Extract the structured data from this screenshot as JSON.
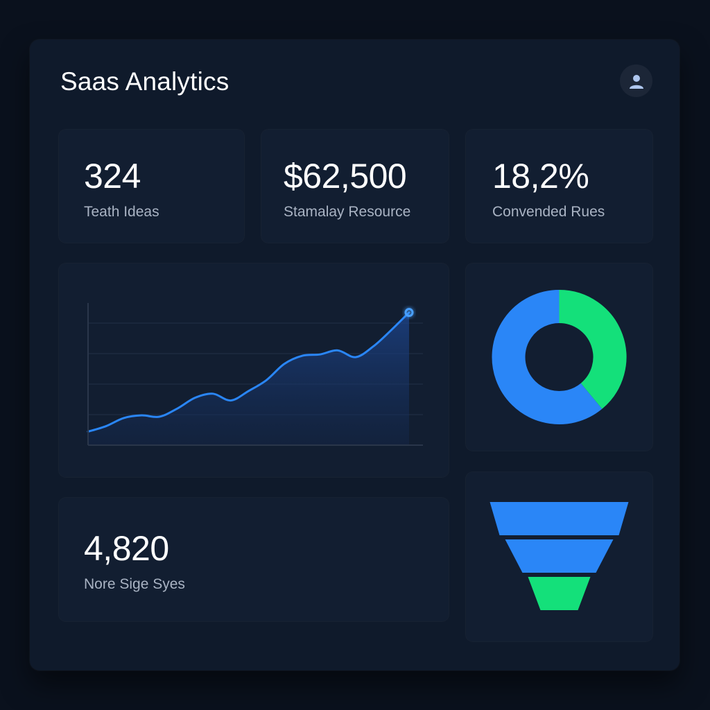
{
  "header": {
    "title": "Saas Analytics",
    "avatar_icon": "user-icon"
  },
  "stats": [
    {
      "value": "324",
      "label": "Teath Ideas"
    },
    {
      "value": "$62,500",
      "label": "Stamalay Resource"
    },
    {
      "value": "18,2%",
      "label": "Convended Rues"
    }
  ],
  "bottom_stat": {
    "value": "4,820",
    "label": "Nore Sige Syes"
  },
  "colors": {
    "accent_blue": "#2a86f7",
    "accent_green": "#14e07a",
    "background": "#0a111d",
    "card": "#121e31"
  },
  "chart_data": [
    {
      "type": "area",
      "series": [
        {
          "values": [
            10,
            14,
            20,
            22,
            21,
            27,
            35,
            38,
            33,
            40,
            48,
            60,
            66,
            67,
            70,
            65,
            73,
            85,
            98
          ]
        }
      ],
      "grid": true,
      "ylim": [
        0,
        105
      ]
    },
    {
      "type": "pie",
      "donut": true,
      "slices": [
        {
          "value": 61,
          "color": "#2a86f7"
        },
        {
          "value": 39,
          "color": "#14e07a"
        }
      ]
    },
    {
      "type": "funnel",
      "stages": [
        {
          "value": 100,
          "color": "#2a86f7"
        },
        {
          "value": 78,
          "color": "#2a86f7"
        },
        {
          "value": 45,
          "color": "#14e07a"
        }
      ]
    }
  ]
}
